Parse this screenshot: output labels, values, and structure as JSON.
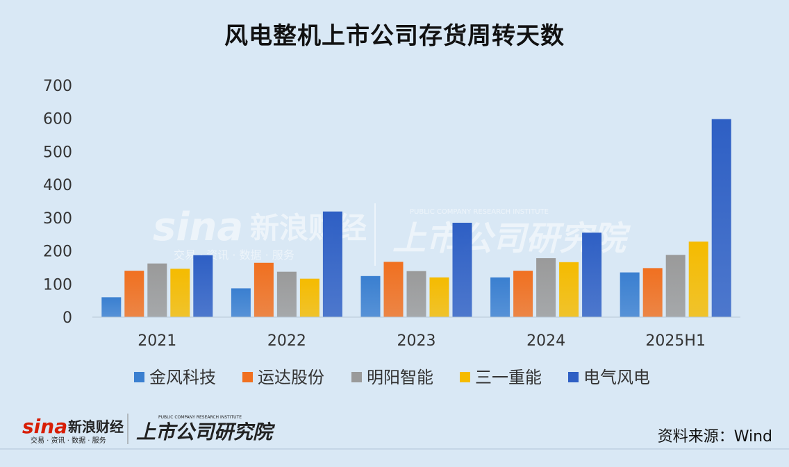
{
  "chart_data": {
    "type": "bar",
    "title": "风电整机上市公司存货周转天数",
    "categories": [
      "2021",
      "2022",
      "2023",
      "2024",
      "2025H1"
    ],
    "ylim": [
      0,
      700
    ],
    "yticks": [
      0,
      100,
      200,
      300,
      400,
      500,
      600,
      700
    ],
    "grid": false,
    "legend_position": "bottom",
    "series": [
      {
        "name": "金风科技",
        "values": [
          60,
          87,
          124,
          120,
          135
        ],
        "color": "#3a7fd0"
      },
      {
        "name": "运达股份",
        "values": [
          140,
          164,
          167,
          140,
          148
        ],
        "color": "#f07020"
      },
      {
        "name": "明阳智能",
        "values": [
          162,
          137,
          139,
          178,
          188
        ],
        "color": "#9a9a9a"
      },
      {
        "name": "三一重能",
        "values": [
          146,
          116,
          120,
          166,
          228
        ],
        "color": "#f5bb00"
      },
      {
        "name": "电气风电",
        "values": [
          187,
          319,
          285,
          255,
          598
        ],
        "color": "#2e5fc4"
      }
    ]
  },
  "watermark": {
    "brand": "sina",
    "brand_cn": "新浪财经",
    "brand_tagline": "交易 · 资讯 · 数据 · 服务",
    "institute": "上市公司研究院",
    "institute_en": "PUBLIC COMPANY RESEARCH INSTITUTE"
  },
  "source": "资料来源：Wind"
}
